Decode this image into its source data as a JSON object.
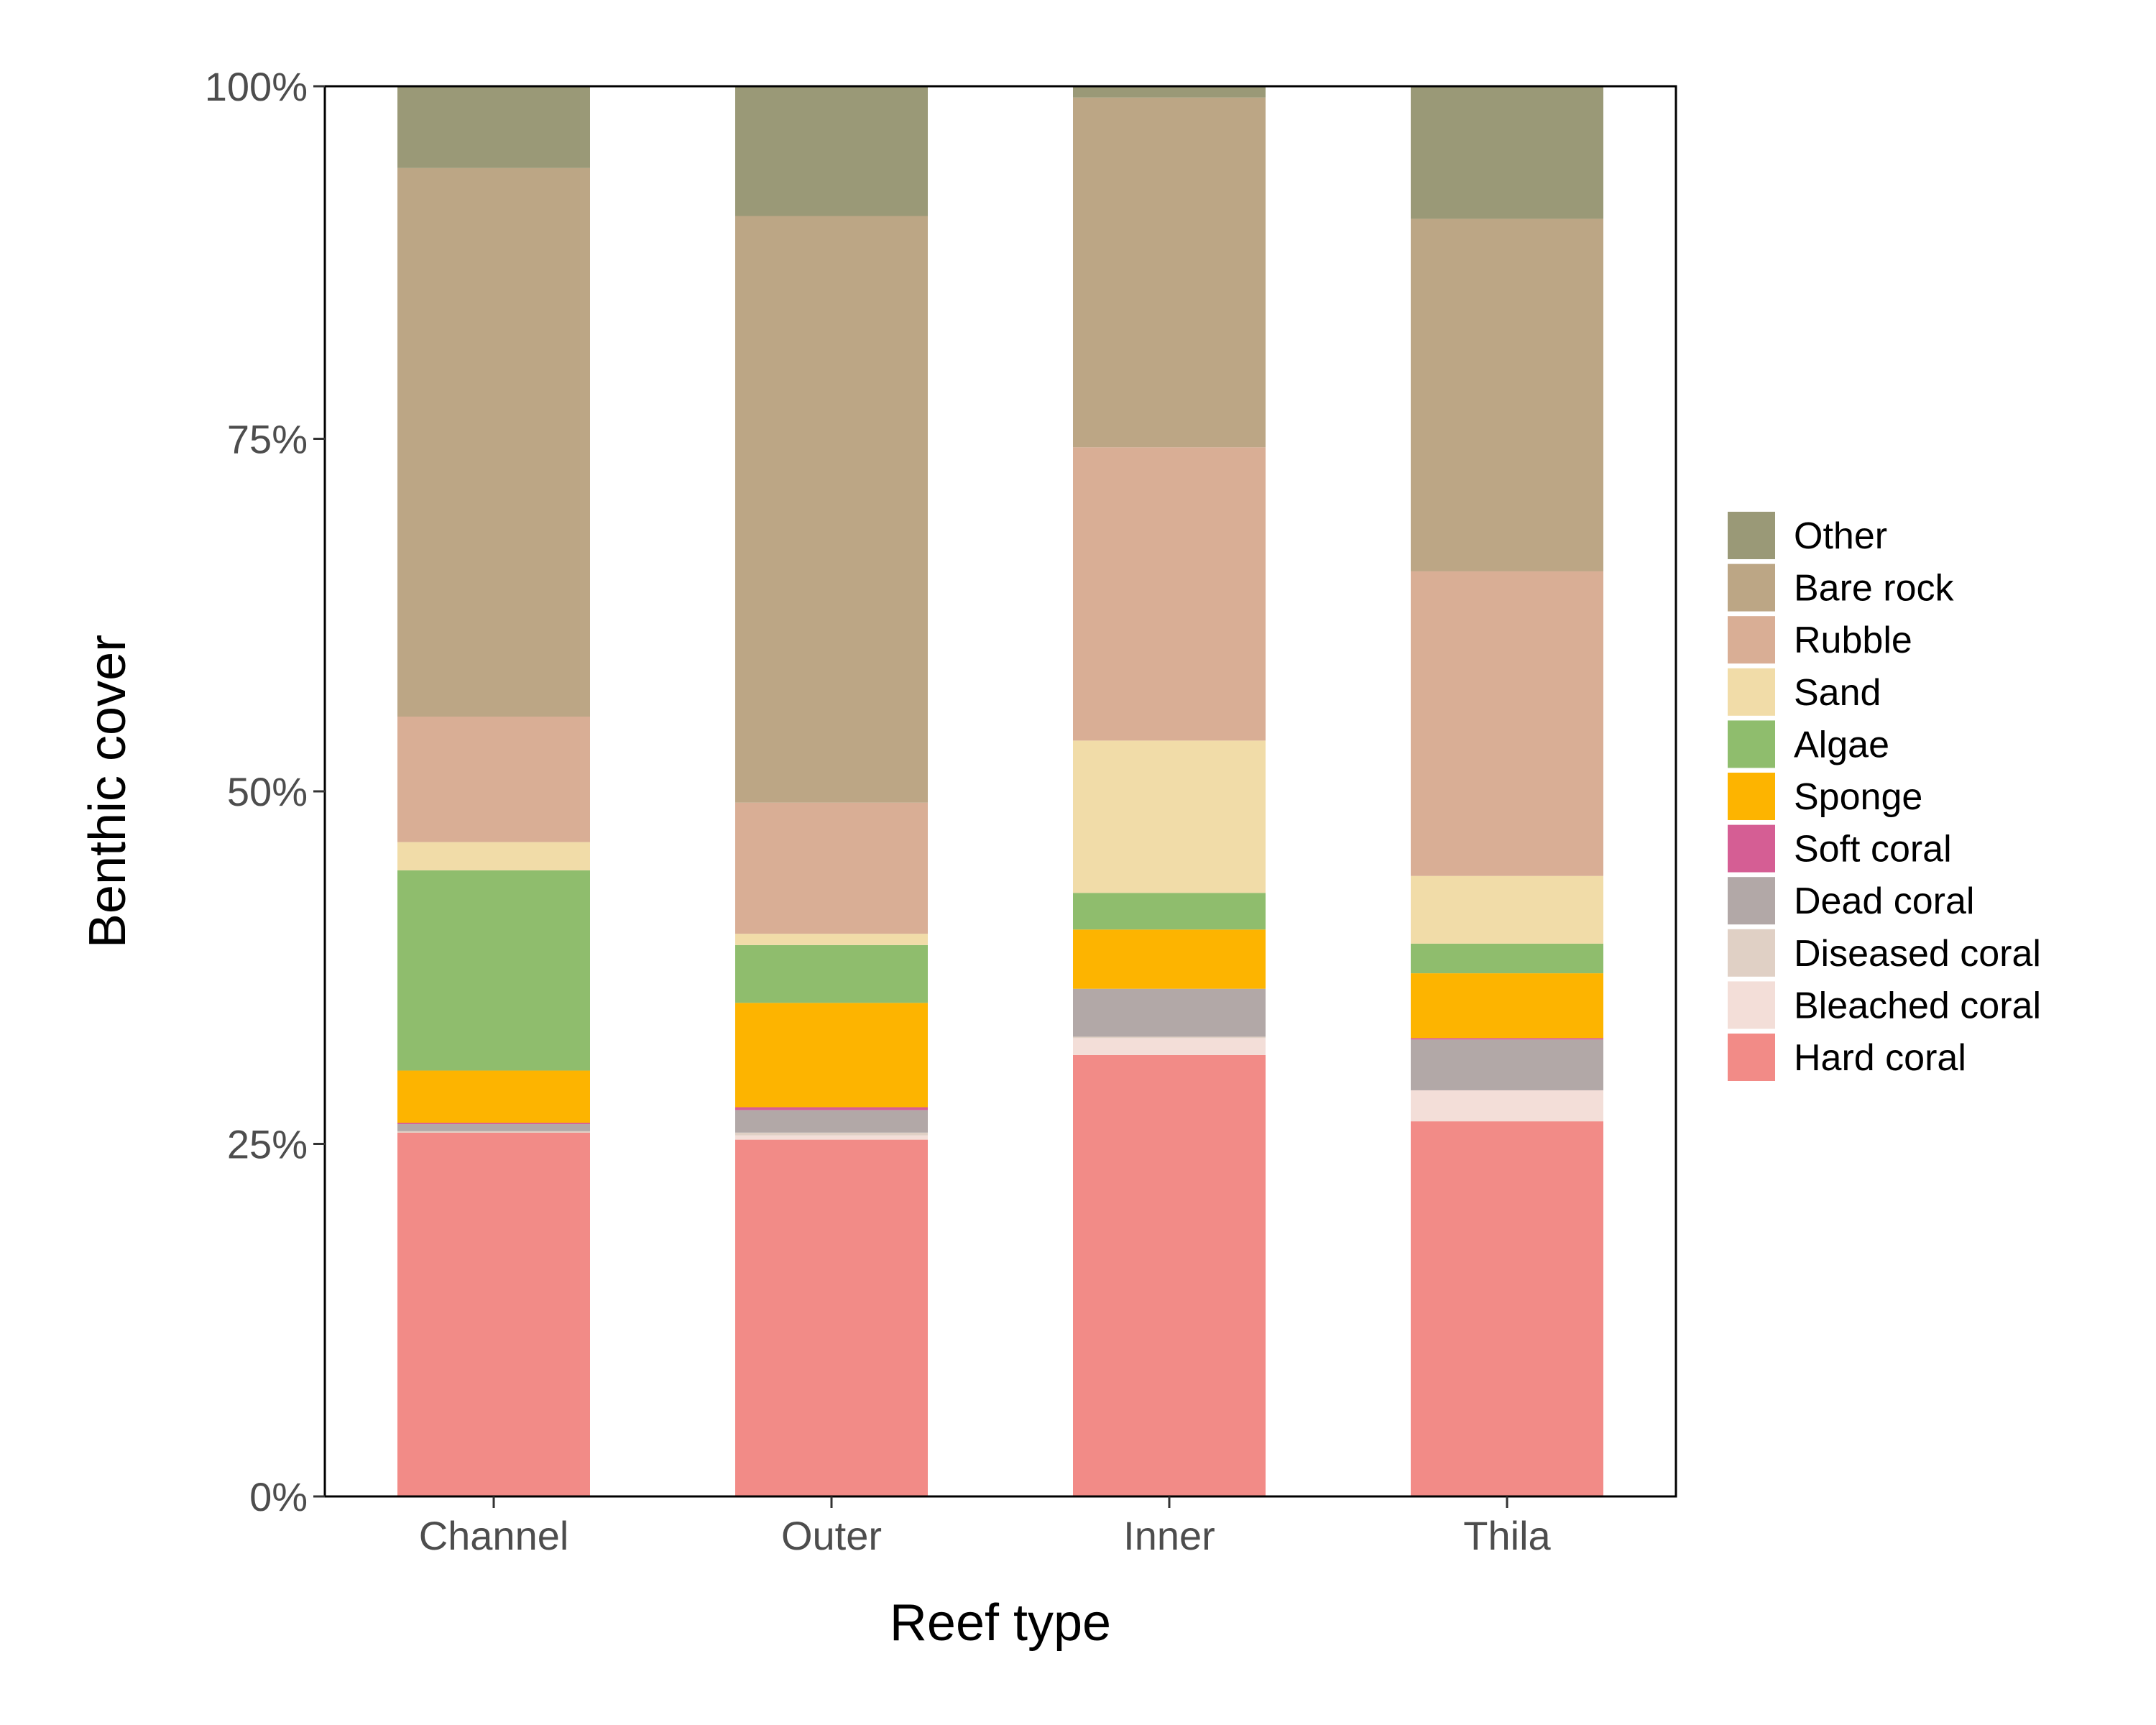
{
  "chart_data": {
    "type": "bar",
    "stacked": true,
    "orientation": "vertical",
    "title": "",
    "xlabel": "Reef type",
    "ylabel": "Benthic cover",
    "categories": [
      "Channel",
      "Outer",
      "Inner",
      "Thila"
    ],
    "ylim": [
      0,
      100
    ],
    "yticks": [
      0,
      25,
      50,
      75,
      100
    ],
    "ytick_labels": [
      "0%",
      "25%",
      "50%",
      "75%",
      "100%"
    ],
    "grid": false,
    "legend_position": "right",
    "series": [
      {
        "name": "Hard coral",
        "color": "#f28b87",
        "values": [
          25.8,
          25.3,
          31.3,
          26.6
        ]
      },
      {
        "name": "Bleached coral",
        "color": "#f3ded8",
        "values": [
          0.0,
          0.3,
          1.2,
          2.2
        ]
      },
      {
        "name": "Diseased coral",
        "color": "#e0d0c5",
        "values": [
          0.1,
          0.2,
          0.1,
          0.0
        ]
      },
      {
        "name": "Dead coral",
        "color": "#b2a8a7",
        "values": [
          0.5,
          1.6,
          3.4,
          3.6
        ]
      },
      {
        "name": "Soft coral",
        "color": "#d55e94",
        "values": [
          0.1,
          0.2,
          0.0,
          0.1
        ]
      },
      {
        "name": "Sponge",
        "color": "#fdb400",
        "values": [
          3.7,
          7.4,
          4.2,
          4.6
        ]
      },
      {
        "name": "Algae",
        "color": "#8fbd6d",
        "values": [
          14.2,
          4.1,
          2.6,
          2.1
        ]
      },
      {
        "name": "Sand",
        "color": "#f1dca8",
        "values": [
          2.0,
          0.8,
          10.8,
          4.8
        ]
      },
      {
        "name": "Rubble",
        "color": "#d9ae95",
        "values": [
          8.9,
          9.3,
          20.8,
          21.6
        ]
      },
      {
        "name": "Bare rock",
        "color": "#bca685",
        "values": [
          38.9,
          41.6,
          24.8,
          25.0
        ]
      },
      {
        "name": "Other",
        "color": "#9a9977",
        "values": [
          5.8,
          9.2,
          0.8,
          9.4
        ]
      }
    ]
  }
}
